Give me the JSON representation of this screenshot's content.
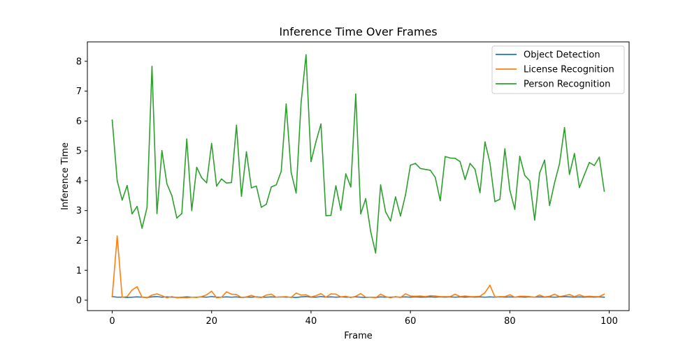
{
  "chart_data": {
    "type": "line",
    "title": "Inference Time Over Frames",
    "xlabel": "Frame",
    "ylabel": "Inference Time",
    "xlim": [
      -5,
      104
    ],
    "ylim": [
      -0.35,
      8.65
    ],
    "xticks": [
      0,
      20,
      40,
      60,
      80,
      100
    ],
    "yticks": [
      0,
      1,
      2,
      3,
      4,
      5,
      6,
      7,
      8
    ],
    "grid": false,
    "legend_position": "top-right",
    "series": [
      {
        "name": "Object Detection",
        "color": "#1f77b4",
        "values": [
          0.12,
          0.1,
          0.1,
          0.09,
          0.1,
          0.11,
          0.1,
          0.09,
          0.11,
          0.12,
          0.1,
          0.11,
          0.1,
          0.09,
          0.1,
          0.11,
          0.1,
          0.1,
          0.11,
          0.1,
          0.12,
          0.1,
          0.1,
          0.11,
          0.1,
          0.11,
          0.09,
          0.1,
          0.1,
          0.11,
          0.1,
          0.1,
          0.11,
          0.1,
          0.11,
          0.1,
          0.1,
          0.09,
          0.11,
          0.12,
          0.1,
          0.1,
          0.12,
          0.1,
          0.11,
          0.1,
          0.11,
          0.1,
          0.1,
          0.11,
          0.1,
          0.09,
          0.1,
          0.09,
          0.11,
          0.1,
          0.1,
          0.11,
          0.1,
          0.11,
          0.1,
          0.11,
          0.1,
          0.1,
          0.11,
          0.1,
          0.11,
          0.1,
          0.11,
          0.1,
          0.11,
          0.1,
          0.11,
          0.1,
          0.11,
          0.1,
          0.11,
          0.1,
          0.11,
          0.1,
          0.11,
          0.1,
          0.11,
          0.1,
          0.11,
          0.1,
          0.11,
          0.1,
          0.11,
          0.1,
          0.11,
          0.12,
          0.11,
          0.1,
          0.11,
          0.1,
          0.11,
          0.1,
          0.11,
          0.1
        ]
      },
      {
        "name": "License Recognition",
        "color": "#ff7f0e",
        "values": [
          0.12,
          2.15,
          0.1,
          0.12,
          0.34,
          0.45,
          0.1,
          0.08,
          0.17,
          0.21,
          0.15,
          0.08,
          0.12,
          0.08,
          0.09,
          0.08,
          0.1,
          0.09,
          0.12,
          0.18,
          0.3,
          0.08,
          0.1,
          0.28,
          0.2,
          0.19,
          0.09,
          0.11,
          0.16,
          0.1,
          0.09,
          0.17,
          0.2,
          0.1,
          0.11,
          0.12,
          0.09,
          0.24,
          0.17,
          0.18,
          0.11,
          0.15,
          0.22,
          0.1,
          0.21,
          0.2,
          0.11,
          0.13,
          0.09,
          0.13,
          0.22,
          0.1,
          0.1,
          0.08,
          0.2,
          0.12,
          0.08,
          0.12,
          0.09,
          0.21,
          0.14,
          0.13,
          0.14,
          0.12,
          0.15,
          0.14,
          0.12,
          0.12,
          0.12,
          0.2,
          0.12,
          0.14,
          0.12,
          0.12,
          0.13,
          0.25,
          0.5,
          0.11,
          0.12,
          0.12,
          0.18,
          0.1,
          0.13,
          0.13,
          0.12,
          0.1,
          0.17,
          0.11,
          0.13,
          0.2,
          0.12,
          0.15,
          0.19,
          0.12,
          0.18,
          0.12,
          0.13,
          0.12,
          0.12,
          0.2
        ]
      },
      {
        "name": "Person Recognition",
        "color": "#2ca02c",
        "values": [
          6.03,
          4.0,
          3.35,
          3.84,
          2.89,
          3.14,
          2.41,
          3.1,
          7.83,
          2.9,
          5.01,
          3.9,
          3.5,
          2.75,
          2.9,
          5.4,
          3.0,
          4.45,
          4.1,
          3.93,
          5.25,
          3.82,
          4.06,
          3.92,
          3.94,
          5.86,
          3.48,
          4.97,
          3.76,
          3.82,
          3.11,
          3.21,
          3.79,
          3.86,
          4.31,
          6.57,
          4.28,
          3.59,
          6.61,
          8.22,
          4.64,
          5.31,
          5.9,
          2.83,
          2.84,
          3.83,
          3.01,
          4.23,
          3.79,
          6.9,
          2.89,
          3.4,
          2.3,
          1.58,
          3.86,
          2.96,
          2.65,
          3.46,
          2.82,
          3.52,
          4.52,
          4.58,
          4.41,
          4.38,
          4.35,
          4.11,
          3.33,
          4.81,
          4.76,
          4.75,
          4.64,
          4.04,
          4.58,
          4.38,
          3.6,
          5.3,
          4.6,
          3.3,
          3.38,
          5.07,
          3.69,
          3.04,
          4.82,
          4.18,
          4.0,
          2.68,
          4.26,
          4.69,
          3.17,
          3.93,
          4.57,
          5.78,
          4.21,
          4.91,
          3.77,
          4.2,
          4.61,
          4.51,
          4.79,
          3.65
        ]
      }
    ]
  }
}
